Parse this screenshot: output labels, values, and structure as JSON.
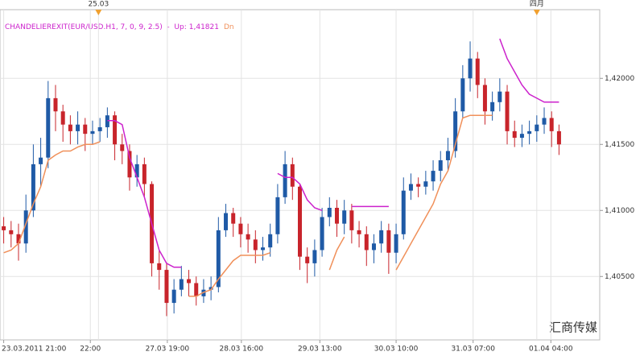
{
  "chart_data": {
    "type": "candlestick",
    "title": "CHANDELIEREXIT(EUR/USD.H1, 7, 0, 9, 2.5)  -  ",
    "up_color": "#1f5aa6",
    "down_color": "#c8242b",
    "open": [
      1.4088,
      1.4085,
      1.4082,
      1.4075,
      1.41,
      1.4135,
      1.414,
      1.4185,
      1.4175,
      1.4165,
      1.416,
      1.4165,
      1.4158,
      1.416,
      1.4163,
      1.4172,
      1.415,
      1.4145,
      1.4125,
      1.4135,
      1.412,
      1.406,
      1.4055,
      1.403,
      1.404,
      1.4048,
      1.4045,
      1.4035,
      1.404,
      1.4042,
      1.4085,
      1.4098,
      1.409,
      1.4082,
      1.4078,
      1.407,
      1.4072,
      1.4082,
      1.411,
      1.4135,
      1.4118,
      1.4065,
      1.406,
      1.407,
      1.4095,
      1.4102,
      1.409,
      1.41,
      1.4085,
      1.4082,
      1.407,
      1.4075,
      1.4085,
      1.4068,
      1.4082,
      1.4115,
      1.412,
      1.4118,
      1.4122,
      1.413,
      1.4138,
      1.4145,
      1.4175,
      1.42,
      1.4215,
      1.4195,
      1.4175,
      1.4182,
      1.419,
      1.416,
      1.4155,
      1.4158,
      1.416,
      1.4165,
      1.417,
      1.416
    ],
    "high": [
      1.4095,
      1.4092,
      1.409,
      1.4112,
      1.415,
      1.4155,
      1.4198,
      1.4195,
      1.418,
      1.4172,
      1.4175,
      1.417,
      1.4168,
      1.417,
      1.4178,
      1.4175,
      1.4158,
      1.415,
      1.4142,
      1.414,
      1.4122,
      1.407,
      1.406,
      1.4048,
      1.4058,
      1.4055,
      1.405,
      1.4048,
      1.405,
      1.4095,
      1.4105,
      1.4102,
      1.4095,
      1.409,
      1.4085,
      1.408,
      1.409,
      1.412,
      1.4145,
      1.414,
      1.412,
      1.4072,
      1.4078,
      1.4102,
      1.411,
      1.4108,
      1.4108,
      1.4105,
      1.4092,
      1.4088,
      1.4082,
      1.4092,
      1.409,
      1.409,
      1.4125,
      1.4128,
      1.4125,
      1.413,
      1.4138,
      1.4145,
      1.4155,
      1.4185,
      1.421,
      1.4228,
      1.422,
      1.42,
      1.419,
      1.42,
      1.4195,
      1.4168,
      1.4165,
      1.4168,
      1.4172,
      1.4178,
      1.4175,
      1.4165
    ],
    "low": [
      1.4075,
      1.4072,
      1.4062,
      1.4068,
      1.4095,
      1.4118,
      1.4132,
      1.416,
      1.4152,
      1.415,
      1.415,
      1.4145,
      1.415,
      1.4152,
      1.4155,
      1.4138,
      1.4135,
      1.4115,
      1.4118,
      1.411,
      1.405,
      1.404,
      1.402,
      1.4022,
      1.4035,
      1.4035,
      1.4028,
      1.403,
      1.4032,
      1.4038,
      1.408,
      1.408,
      1.4072,
      1.4068,
      1.406,
      1.4062,
      1.4065,
      1.4075,
      1.4105,
      1.4108,
      1.4055,
      1.4045,
      1.405,
      1.4065,
      1.4088,
      1.408,
      1.4082,
      1.4075,
      1.4072,
      1.4058,
      1.406,
      1.4068,
      1.4052,
      1.406,
      1.4078,
      1.4108,
      1.411,
      1.4112,
      1.4115,
      1.4122,
      1.413,
      1.414,
      1.417,
      1.419,
      1.4185,
      1.4165,
      1.4168,
      1.4175,
      1.415,
      1.4148,
      1.4148,
      1.415,
      1.4152,
      1.4158,
      1.4148,
      1.4142
    ],
    "close": [
      1.4085,
      1.4082,
      1.4075,
      1.41,
      1.4135,
      1.414,
      1.4185,
      1.4175,
      1.4165,
      1.416,
      1.4165,
      1.4158,
      1.416,
      1.4163,
      1.4172,
      1.415,
      1.4145,
      1.4125,
      1.4135,
      1.412,
      1.406,
      1.4055,
      1.403,
      1.404,
      1.4048,
      1.4045,
      1.4035,
      1.404,
      1.4042,
      1.4085,
      1.4098,
      1.409,
      1.4082,
      1.4078,
      1.407,
      1.4072,
      1.4082,
      1.411,
      1.4135,
      1.4118,
      1.4065,
      1.406,
      1.407,
      1.4095,
      1.4102,
      1.409,
      1.41,
      1.4085,
      1.4082,
      1.407,
      1.4075,
      1.4085,
      1.4068,
      1.4082,
      1.4115,
      1.412,
      1.4118,
      1.4122,
      1.413,
      1.4138,
      1.4145,
      1.4175,
      1.42,
      1.4215,
      1.4195,
      1.4175,
      1.4182,
      1.419,
      1.416,
      1.4155,
      1.4158,
      1.416,
      1.4165,
      1.417,
      1.416,
      1.415
    ],
    "series": [
      {
        "name": "Up:",
        "current": "1,41821",
        "color": "#cc22cc",
        "values": [
          null,
          null,
          null,
          null,
          null,
          null,
          null,
          null,
          null,
          null,
          null,
          null,
          null,
          null,
          1.4168,
          1.4168,
          1.4165,
          1.414,
          1.4125,
          1.411,
          1.409,
          1.407,
          1.406,
          1.4057,
          1.4057,
          null,
          null,
          null,
          null,
          null,
          null,
          null,
          null,
          null,
          null,
          null,
          null,
          1.4128,
          1.4125,
          1.4125,
          1.412,
          1.4108,
          1.4102,
          1.41,
          null,
          null,
          null,
          1.4103,
          1.4103,
          1.4103,
          1.4103,
          1.4103,
          1.4103,
          null,
          null,
          null,
          null,
          null,
          null,
          null,
          null,
          null,
          null,
          null,
          null,
          null,
          null,
          1.423,
          1.4215,
          1.4205,
          1.4195,
          1.4188,
          1.4185,
          1.4182,
          1.4182,
          1.4182
        ]
      },
      {
        "name": "Dn",
        "color": "#f0905a",
        "values": [
          1.4068,
          1.407,
          1.4075,
          1.409,
          1.4105,
          1.4118,
          1.4138,
          1.4142,
          1.4145,
          1.4145,
          1.4148,
          1.415,
          1.415,
          1.4152,
          null,
          null,
          null,
          null,
          null,
          null,
          null,
          null,
          null,
          null,
          null,
          1.4035,
          1.4035,
          1.4038,
          1.404,
          1.4048,
          1.4055,
          1.4062,
          1.4066,
          1.4066,
          1.4066,
          1.4066,
          1.4068,
          null,
          null,
          null,
          null,
          null,
          null,
          null,
          1.4055,
          1.407,
          1.408,
          null,
          null,
          null,
          null,
          null,
          null,
          1.4055,
          1.4065,
          1.4075,
          1.4085,
          1.4095,
          1.4105,
          1.412,
          1.413,
          1.415,
          1.417,
          1.4172,
          1.4172,
          1.4172,
          1.4172,
          null,
          null,
          null,
          null,
          null,
          null,
          null,
          null,
          null
        ]
      }
    ],
    "ylim": [
      1.4002,
      1.4252
    ],
    "yticks": [
      {
        "value": 1.405,
        "label": "1,40500"
      },
      {
        "value": 1.41,
        "label": "1,41000"
      },
      {
        "value": 1.415,
        "label": "1,41500"
      },
      {
        "value": 1.42,
        "label": "1,42000"
      }
    ],
    "xlim": [
      0,
      81
    ],
    "xticks": [
      {
        "value": 0.5,
        "label": "23.03.2011 21:00"
      },
      {
        "value": 12.2,
        "label": "22:00"
      },
      {
        "value": 22.6,
        "label": "27.03 19:00"
      },
      {
        "value": 32.6,
        "label": "28.03 16:00"
      },
      {
        "value": 43.2,
        "label": "29.03 13:00"
      },
      {
        "value": 53.5,
        "label": "30.03 10:00"
      },
      {
        "value": 63.9,
        "label": "31.03 07:00"
      },
      {
        "value": 74.4,
        "label": "01.04 04:00"
      }
    ],
    "x2ticks": [
      {
        "value": 13.3,
        "label": "25.03"
      },
      {
        "value": 72.5,
        "label": "四月"
      }
    ],
    "grid": true,
    "watermark": "汇商传媒"
  }
}
